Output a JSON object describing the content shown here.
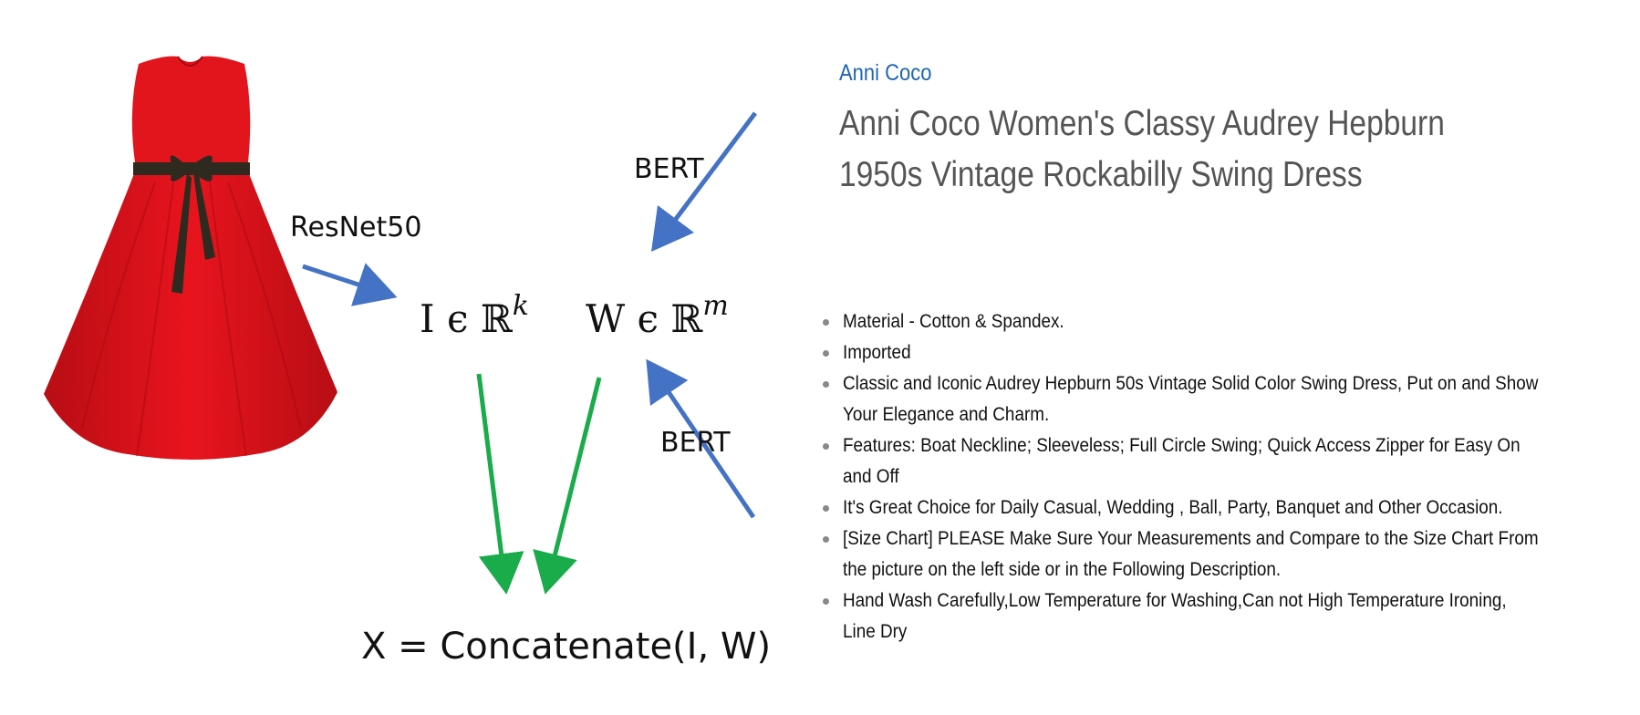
{
  "diagram": {
    "image_label": "ResNet50",
    "title_label": "BERT",
    "bullets_label": "BERT",
    "image_vector": {
      "symbol": "I",
      "op": "ϵ",
      "space": "ℝ",
      "dim": "k"
    },
    "text_vector": {
      "symbol": "W",
      "op": "ϵ",
      "space": "ℝ",
      "dim": "m"
    },
    "result": "X = Concatenate(I, W)"
  },
  "product": {
    "brand": "Anni Coco",
    "title": "Anni Coco Women's Classy Audrey Hepburn 1950s Vintage Rockabilly Swing Dress",
    "bullets": [
      "Material - Cotton & Spandex.",
      "Imported",
      "Classic and Iconic Audrey Hepburn 50s Vintage Solid Color Swing Dress, Put on and Show Your Elegance and Charm.",
      "Features: Boat Neckline; Sleeveless; Full Circle Swing; Quick Access Zipper for Easy On and Off",
      "It's Great Choice for Daily Casual, Wedding , Ball, Party, Banquet and Other Occasion.",
      "[Size Chart] PLEASE Make Sure Your Measurements and Compare to the Size Chart From the picture on the left side or in the Following Description.",
      "Hand Wash Carefully,Low Temperature for Washing,Can not High Temperature Ironing, Line Dry"
    ]
  },
  "colors": {
    "blue_arrow": "#4472c4",
    "green_arrow": "#1aab4b",
    "dress_red": "#e2141c",
    "sash": "#2e2a1f",
    "brand_link": "#1f66b3",
    "title_gray": "#555555",
    "bullet_dot": "#888888"
  }
}
